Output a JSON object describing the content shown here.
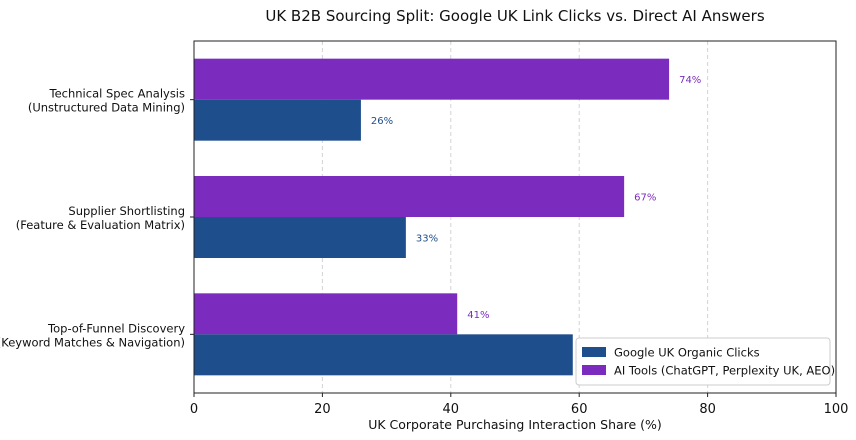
{
  "chart_data": {
    "type": "bar",
    "orientation": "horizontal",
    "title": "UK B2B Sourcing Split: Google UK Link Clicks vs. Direct AI Answers",
    "xlabel": "UK Corporate Purchasing Interaction Share (%)",
    "ylabel": "",
    "xlim": [
      0,
      100
    ],
    "xticks": [
      0,
      20,
      40,
      60,
      80,
      100
    ],
    "grid": "vertical dashed",
    "legend_position": "lower-right",
    "categories": [
      [
        "Technical Spec Analysis",
        "(Unstructured Data Mining)"
      ],
      [
        "Supplier Shortlisting",
        "(Feature & Evaluation Matrix)"
      ],
      [
        "Top-of-Funnel Discovery",
        "(Keyword Matches & Navigation)"
      ]
    ],
    "series": [
      {
        "name": "Google UK Organic Clicks",
        "color": "#1f4e8c",
        "values": [
          26,
          33,
          59
        ],
        "labels": [
          "26%",
          "33%",
          ""
        ]
      },
      {
        "name": "AI Tools (ChatGPT, Perplexity UK, AEO)",
        "color": "#7b2cbf",
        "values": [
          74,
          67,
          41
        ],
        "labels": [
          "74%",
          "67%",
          "41%"
        ]
      }
    ]
  }
}
